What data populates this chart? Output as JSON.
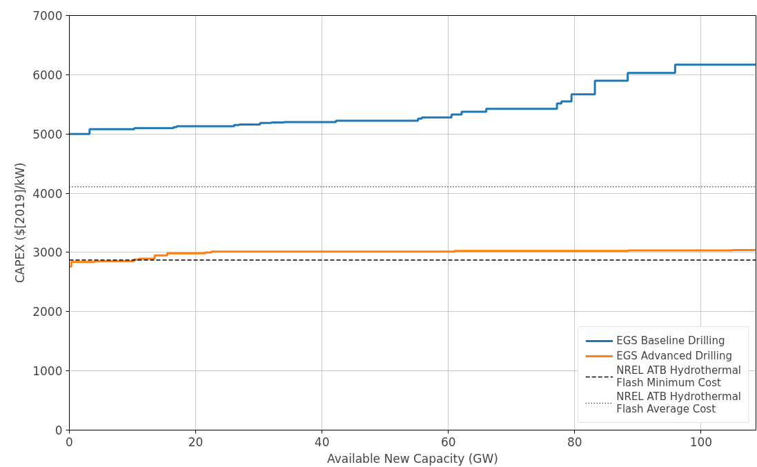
{
  "chart_data": {
    "type": "step",
    "xlabel": "Available New Capacity (GW)",
    "ylabel": "CAPEX ($[2019]/kW)",
    "xlim": [
      0,
      108.7
    ],
    "ylim": [
      0,
      7000
    ],
    "xticks": [
      0,
      20,
      40,
      60,
      80,
      100
    ],
    "yticks": [
      0,
      1000,
      2000,
      3000,
      4000,
      5000,
      6000,
      7000
    ],
    "grid": true,
    "legend": "bottom right",
    "line_style": "solid",
    "series": [
      {
        "name": "EGS Baseline Drilling",
        "color": "#1f77b4",
        "x": [
          0,
          3.2,
          10.3,
          16.5,
          17,
          26.1,
          26.9,
          30.2,
          32,
          34,
          42.2,
          55.2,
          55.8,
          60.5,
          62.1,
          66,
          77.2,
          77.9,
          79.5,
          83.2,
          88.4,
          95.9,
          108.7
        ],
        "values": [
          5000,
          5080,
          5100,
          5115,
          5130,
          5150,
          5160,
          5185,
          5195,
          5200,
          5225,
          5260,
          5280,
          5330,
          5375,
          5425,
          5515,
          5550,
          5670,
          5900,
          6030,
          6170,
          6170
        ]
      },
      {
        "name": "EGS Advanced Drilling",
        "color": "#ff7f0e",
        "x": [
          0,
          0.3,
          4,
          10.2,
          11,
          13.5,
          15.5,
          21.5,
          22.5,
          61,
          88.5,
          105,
          108.7
        ],
        "values": [
          2760,
          2840,
          2850,
          2880,
          2895,
          2950,
          2985,
          3000,
          3015,
          3025,
          3035,
          3040,
          3040
        ]
      }
    ],
    "ref_lines": [
      {
        "axis": "y",
        "value": 2870,
        "label": "NREL ATB Hydrothermal Flash Minimum Cost",
        "color": "#000000",
        "line_style": "dashed"
      },
      {
        "axis": "y",
        "value": 4110,
        "label": "NREL ATB Hydrothermal Flash Average Cost",
        "color": "#000000",
        "line_style": "dotted"
      }
    ]
  }
}
